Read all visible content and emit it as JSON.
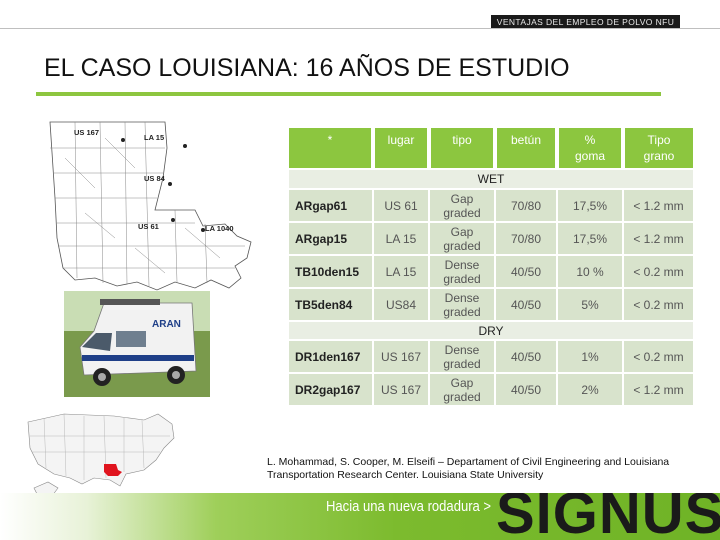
{
  "header": {
    "tag": "VENTAJAS DEL EMPLEO DE POLVO NFU",
    "title": "EL CASO LOUISIANA: 16 AÑOS DE ESTUDIO"
  },
  "map_labels": {
    "us167": "US 167",
    "la15": "LA 15",
    "us84": "US 84",
    "us61": "US 61",
    "la1040": "LA 1040"
  },
  "van_logo": "ARAN",
  "table": {
    "headers": [
      "*",
      "lugar",
      "tipo",
      "betún",
      "% goma",
      "Tipo grano"
    ],
    "header_lines": {
      "goma": [
        "%",
        "goma"
      ],
      "grano": [
        "Tipo",
        "grano"
      ]
    },
    "sections": [
      {
        "label": "WET",
        "rows": [
          {
            "mix": "ARgap61",
            "place": "US 61",
            "type1": "Gap",
            "type2": "graded",
            "binder": "70/80",
            "rubber": "17,5%",
            "grain": "< 1.2 mm"
          },
          {
            "mix": "ARgap15",
            "place": "LA 15",
            "type1": "Gap",
            "type2": "graded",
            "binder": "70/80",
            "rubber": "17,5%",
            "grain": "< 1.2 mm"
          },
          {
            "mix": "TB10den15",
            "place": "LA 15",
            "type1": "Dense",
            "type2": "graded",
            "binder": "40/50",
            "rubber": "10 %",
            "grain": "< 0.2 mm"
          },
          {
            "mix": "TB5den84",
            "place": "US84",
            "type1": "Dense",
            "type2": "graded",
            "binder": "40/50",
            "rubber": "5%",
            "grain": "< 0.2 mm"
          }
        ]
      },
      {
        "label": "DRY",
        "rows": [
          {
            "mix": "DR1den167",
            "place": "US 167",
            "type1": "Dense",
            "type2": "graded",
            "binder": "40/50",
            "rubber": "1%",
            "grain": "< 0.2 mm"
          },
          {
            "mix": "DR2gap167",
            "place": "US 167",
            "type1": "Gap",
            "type2": "graded",
            "binder": "40/50",
            "rubber": "2%",
            "grain": "< 1.2 mm"
          }
        ]
      }
    ]
  },
  "citation": "L. Mohammad, S. Cooper, M. Elseifi – Departament of Civil Engineering and Louisiana Transportation Research Center. Louisiana State University",
  "footer": {
    "tagline": "Hacia una nueva rodadura  >",
    "logo": "SIGNUS"
  },
  "colors": {
    "accent_green": "#8cc63f",
    "row_green": "#d8e3cc",
    "section_green": "#e9eee3",
    "highlight_red": "#e0141e"
  }
}
